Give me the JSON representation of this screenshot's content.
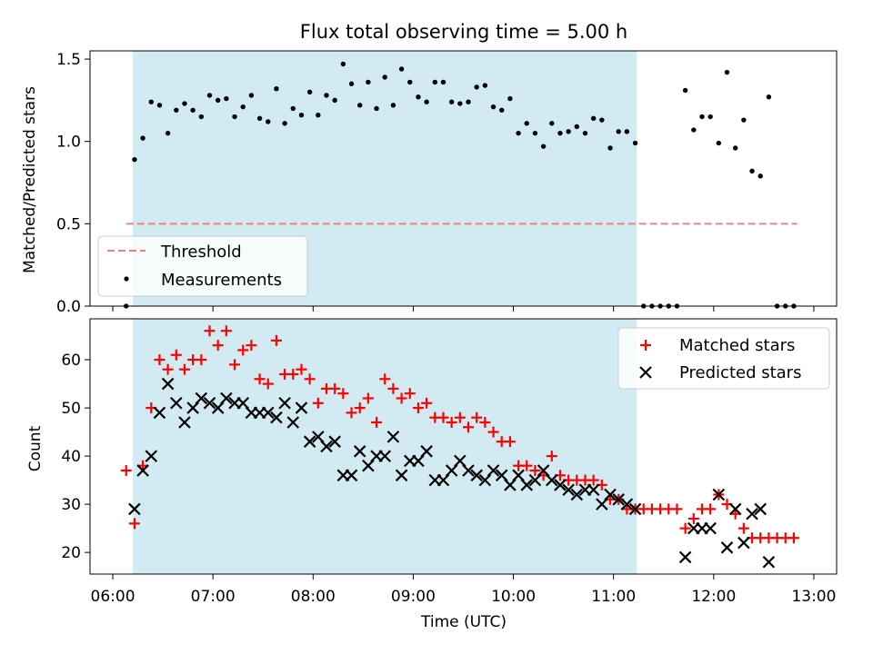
{
  "figure": {
    "title": "Flux total observing time = 5.00 h",
    "xlabel": "Time (UTC)",
    "observing_window": {
      "start": "06:12",
      "end": "11:14",
      "color": "#add8e6"
    }
  },
  "chart_data": [
    {
      "type": "scatter",
      "ylabel": "Matched/Predicted stars",
      "xlim": [
        "06:00",
        "13:00"
      ],
      "ylim": [
        0,
        1.5
      ],
      "yticks": [
        0.0,
        0.5,
        1.0,
        1.5
      ],
      "ytick_labels": [
        "0.0",
        "0.5",
        "1.0",
        "1.5"
      ],
      "legend": {
        "placement": "lower left"
      },
      "threshold": {
        "name": "Threshold",
        "value": 0.5,
        "x": [
          "06:08",
          "12:50"
        ],
        "color": "#f08080",
        "style": "dashed"
      },
      "series": [
        {
          "name": "Measurements",
          "color": "#000000",
          "marker": "dot",
          "x": [
            "06:08",
            "06:13",
            "06:18",
            "06:23",
            "06:28",
            "06:33",
            "06:38",
            "06:43",
            "06:48",
            "06:53",
            "06:58",
            "07:03",
            "07:08",
            "07:13",
            "07:18",
            "07:23",
            "07:28",
            "07:33",
            "07:38",
            "07:43",
            "07:48",
            "07:53",
            "07:58",
            "08:03",
            "08:08",
            "08:13",
            "08:18",
            "08:23",
            "08:28",
            "08:33",
            "08:38",
            "08:43",
            "08:48",
            "08:53",
            "08:58",
            "09:03",
            "09:08",
            "09:13",
            "09:18",
            "09:23",
            "09:28",
            "09:33",
            "09:38",
            "09:43",
            "09:48",
            "09:53",
            "09:58",
            "10:03",
            "10:08",
            "10:13",
            "10:18",
            "10:23",
            "10:28",
            "10:33",
            "10:38",
            "10:43",
            "10:48",
            "10:53",
            "10:58",
            "11:03",
            "11:08",
            "11:13",
            "11:18",
            "11:23",
            "11:28",
            "11:33",
            "11:38",
            "11:43",
            "11:48",
            "11:53",
            "11:58",
            "12:03",
            "12:08",
            "12:13",
            "12:18",
            "12:23",
            "12:28",
            "12:33",
            "12:38",
            "12:43",
            "12:48"
          ],
          "y": [
            0.0,
            0.89,
            1.02,
            1.24,
            1.22,
            1.05,
            1.19,
            1.23,
            1.19,
            1.15,
            1.28,
            1.25,
            1.26,
            1.15,
            1.21,
            1.28,
            1.14,
            1.12,
            1.32,
            1.11,
            1.2,
            1.16,
            1.3,
            1.16,
            1.28,
            1.25,
            1.47,
            1.35,
            1.22,
            1.36,
            1.2,
            1.39,
            1.22,
            1.44,
            1.36,
            1.27,
            1.24,
            1.36,
            1.36,
            1.24,
            1.23,
            1.24,
            1.33,
            1.34,
            1.21,
            1.19,
            1.26,
            1.05,
            1.11,
            1.05,
            0.97,
            1.11,
            1.05,
            1.06,
            1.09,
            1.05,
            1.14,
            1.13,
            0.96,
            1.06,
            1.06,
            0.99,
            0.0,
            0.0,
            0.0,
            0.0,
            0.0,
            1.31,
            1.07,
            1.15,
            1.15,
            0.99,
            1.42,
            0.96,
            1.13,
            0.82,
            0.79,
            1.27,
            0.0,
            0.0,
            0.0
          ]
        }
      ]
    },
    {
      "type": "scatter",
      "ylabel": "Count",
      "xlim": [
        "06:00",
        "13:00"
      ],
      "ylim": [
        15.5,
        68.5
      ],
      "yticks": [
        20,
        30,
        40,
        50,
        60
      ],
      "ytick_labels": [
        "20",
        "30",
        "40",
        "50",
        "60"
      ],
      "xticks": [
        "06:00",
        "07:00",
        "08:00",
        "09:00",
        "10:00",
        "11:00",
        "12:00",
        "13:00"
      ],
      "xtick_labels": [
        "06:00",
        "07:00",
        "08:00",
        "09:00",
        "10:00",
        "11:00",
        "12:00",
        "13:00"
      ],
      "legend": {
        "placement": "top-right"
      },
      "series": [
        {
          "name": "Matched stars",
          "color": "#ff0000",
          "marker": "plus",
          "x": [
            "06:08",
            "06:13",
            "06:18",
            "06:23",
            "06:28",
            "06:33",
            "06:38",
            "06:43",
            "06:48",
            "06:53",
            "06:58",
            "07:03",
            "07:08",
            "07:13",
            "07:18",
            "07:23",
            "07:28",
            "07:33",
            "07:38",
            "07:43",
            "07:48",
            "07:53",
            "07:58",
            "08:03",
            "08:08",
            "08:13",
            "08:18",
            "08:23",
            "08:28",
            "08:33",
            "08:38",
            "08:43",
            "08:48",
            "08:53",
            "08:58",
            "09:03",
            "09:08",
            "09:13",
            "09:18",
            "09:23",
            "09:28",
            "09:33",
            "09:38",
            "09:43",
            "09:48",
            "09:53",
            "09:58",
            "10:03",
            "10:08",
            "10:13",
            "10:18",
            "10:23",
            "10:28",
            "10:33",
            "10:38",
            "10:43",
            "10:48",
            "10:53",
            "10:58",
            "11:03",
            "11:08",
            "11:13",
            "11:18",
            "11:23",
            "11:28",
            "11:33",
            "11:38",
            "11:43",
            "11:48",
            "11:53",
            "11:58",
            "12:03",
            "12:08",
            "12:13",
            "12:18",
            "12:23",
            "12:28",
            "12:33",
            "12:38",
            "12:43",
            "12:48"
          ],
          "y": [
            37,
            26,
            38,
            50,
            60,
            58,
            61,
            58,
            60,
            60,
            66,
            63,
            66,
            59,
            62,
            63,
            56,
            55,
            64,
            57,
            57,
            58,
            56,
            51,
            54,
            54,
            53,
            49,
            50,
            52,
            47,
            56,
            54,
            52,
            53,
            50,
            51,
            48,
            48,
            47,
            48,
            46,
            48,
            47,
            45,
            43,
            43,
            38,
            38,
            37,
            36,
            40,
            36,
            35,
            35,
            35,
            35,
            34,
            31,
            31,
            29,
            29,
            29,
            29,
            29,
            29,
            29,
            25,
            27,
            29,
            29,
            32,
            30,
            28,
            25,
            23,
            23,
            23,
            23,
            23,
            23
          ]
        },
        {
          "name": "Predicted stars",
          "color": "#000000",
          "marker": "x",
          "x": [
            "06:13",
            "06:18",
            "06:23",
            "06:28",
            "06:33",
            "06:38",
            "06:43",
            "06:48",
            "06:53",
            "06:58",
            "07:03",
            "07:08",
            "07:13",
            "07:18",
            "07:23",
            "07:28",
            "07:33",
            "07:38",
            "07:43",
            "07:48",
            "07:53",
            "07:58",
            "08:03",
            "08:08",
            "08:13",
            "08:18",
            "08:23",
            "08:28",
            "08:33",
            "08:38",
            "08:43",
            "08:48",
            "08:53",
            "08:58",
            "09:03",
            "09:08",
            "09:13",
            "09:18",
            "09:23",
            "09:28",
            "09:33",
            "09:38",
            "09:43",
            "09:48",
            "09:53",
            "09:58",
            "10:03",
            "10:08",
            "10:13",
            "10:18",
            "10:23",
            "10:28",
            "10:33",
            "10:38",
            "10:43",
            "10:48",
            "10:53",
            "10:58",
            "11:03",
            "11:08",
            "11:13",
            "11:43",
            "11:48",
            "11:53",
            "11:58",
            "12:03",
            "12:08",
            "12:13",
            "12:18",
            "12:23",
            "12:28",
            "12:33"
          ],
          "y": [
            29,
            37,
            40,
            49,
            55,
            51,
            47,
            50,
            52,
            51,
            50,
            52,
            51,
            51,
            49,
            49,
            49,
            48,
            51,
            47,
            50,
            43,
            44,
            42,
            43,
            36,
            36,
            41,
            38,
            40,
            40,
            44,
            36,
            39,
            39,
            41,
            35,
            35,
            37,
            39,
            37,
            36,
            35,
            37,
            36,
            34,
            36,
            34,
            35,
            37,
            35,
            34,
            33,
            32,
            33,
            33,
            30,
            32,
            31,
            30,
            29,
            19,
            25,
            25,
            25,
            32,
            21,
            29,
            22,
            28,
            29,
            18
          ]
        }
      ]
    }
  ]
}
